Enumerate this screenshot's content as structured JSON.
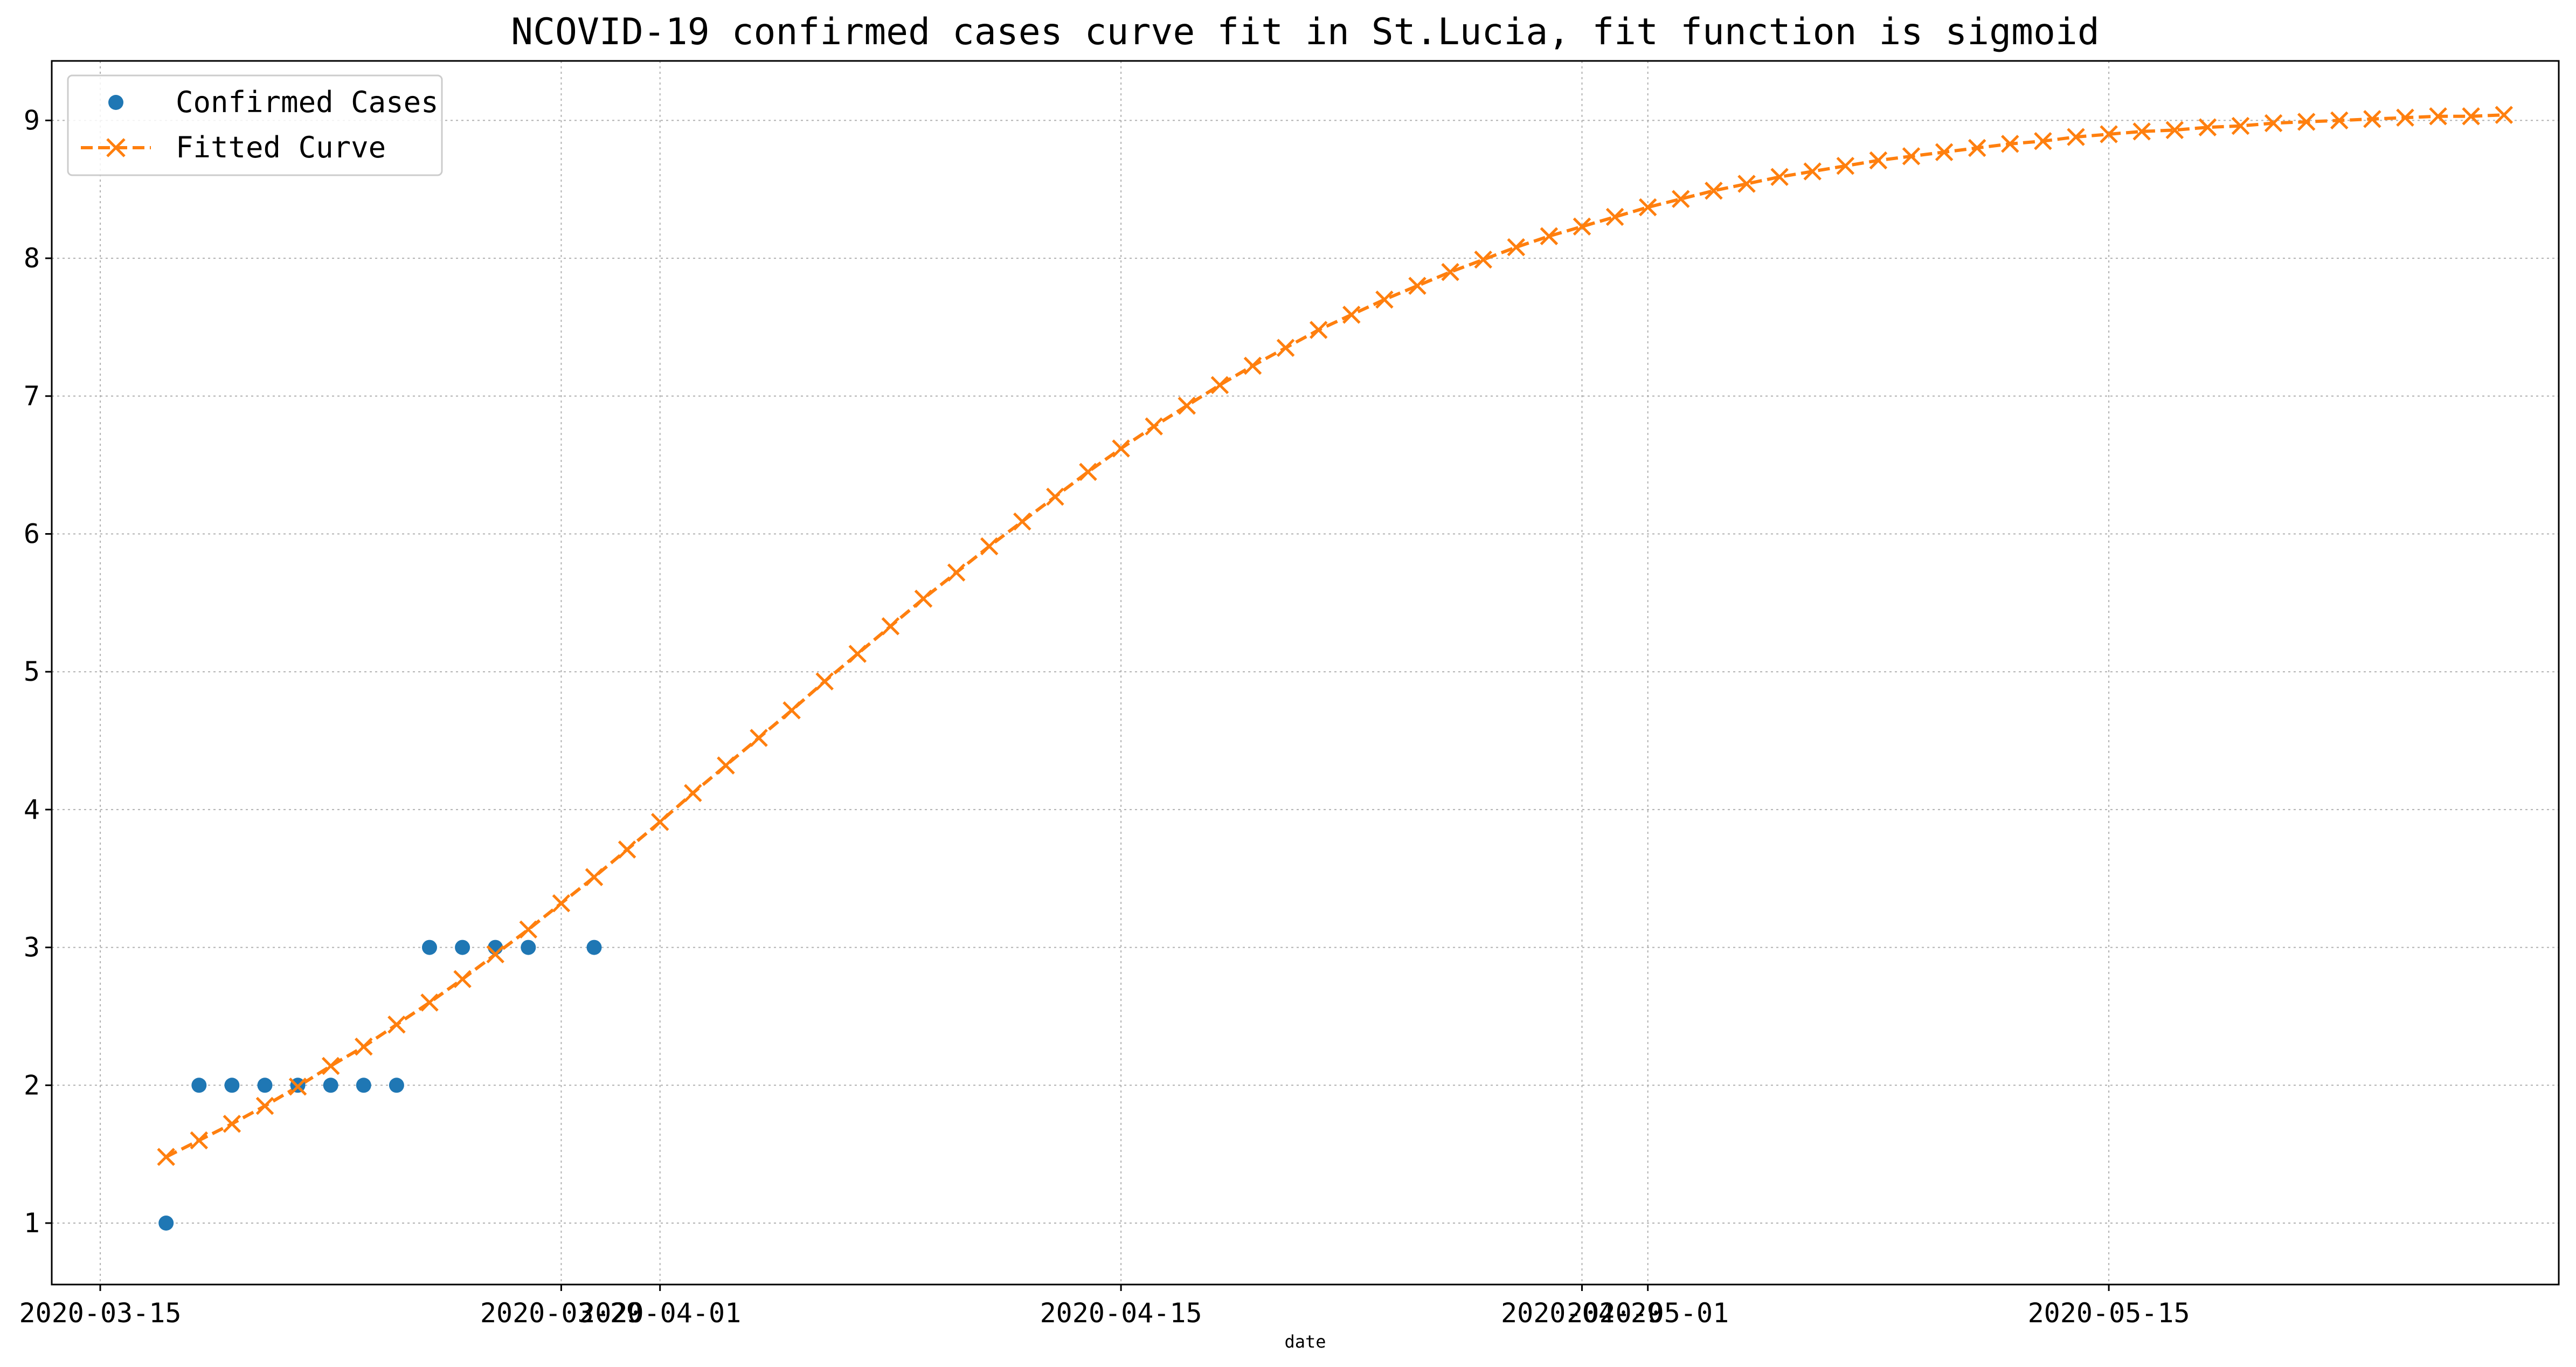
{
  "chart_data": {
    "type": "line",
    "title": "NCOVID-19 confirmed cases curve fit in St.Lucia, fit function is sigmoid",
    "xlabel": "date",
    "ylabel": "",
    "x_ticks": [
      "2020-03-15",
      "2020-03-29",
      "2020-04-01",
      "2020-04-15",
      "2020-04-29",
      "2020-05-01",
      "2020-05-15"
    ],
    "y_ticks": [
      1,
      2,
      3,
      4,
      5,
      6,
      7,
      8,
      9
    ],
    "ylim": [
      0.6,
      9.4
    ],
    "xlim": [
      "2020-03-15",
      "2020-05-29"
    ],
    "grid": true,
    "legend": "top-left",
    "colors": {
      "confirmed": "#1f77b4",
      "fitted": "#ff7f0e"
    },
    "series": [
      {
        "name": "Confirmed Cases",
        "style": "markers",
        "x": [
          "2020-03-17",
          "2020-03-18",
          "2020-03-19",
          "2020-03-20",
          "2020-03-21",
          "2020-03-22",
          "2020-03-23",
          "2020-03-24",
          "2020-03-25",
          "2020-03-26",
          "2020-03-27",
          "2020-03-28",
          "2020-03-30"
        ],
        "values": [
          1,
          2,
          2,
          2,
          2,
          2,
          2,
          2,
          3,
          3,
          3,
          3,
          3
        ]
      },
      {
        "name": "Fitted Curve",
        "style": "dashed-line-with-x-markers",
        "x": [
          "2020-03-17",
          "2020-03-18",
          "2020-03-19",
          "2020-03-20",
          "2020-03-21",
          "2020-03-22",
          "2020-03-23",
          "2020-03-24",
          "2020-03-25",
          "2020-03-26",
          "2020-03-27",
          "2020-03-28",
          "2020-03-29",
          "2020-03-30",
          "2020-03-31",
          "2020-04-01",
          "2020-04-02",
          "2020-04-03",
          "2020-04-04",
          "2020-04-05",
          "2020-04-06",
          "2020-04-07",
          "2020-04-08",
          "2020-04-09",
          "2020-04-10",
          "2020-04-11",
          "2020-04-12",
          "2020-04-13",
          "2020-04-14",
          "2020-04-15",
          "2020-04-16",
          "2020-04-17",
          "2020-04-18",
          "2020-04-19",
          "2020-04-20",
          "2020-04-21",
          "2020-04-22",
          "2020-04-23",
          "2020-04-24",
          "2020-04-25",
          "2020-04-26",
          "2020-04-27",
          "2020-04-28",
          "2020-04-29",
          "2020-04-30",
          "2020-05-01",
          "2020-05-02",
          "2020-05-03",
          "2020-05-04",
          "2020-05-05",
          "2020-05-06",
          "2020-05-07",
          "2020-05-08",
          "2020-05-09",
          "2020-05-10",
          "2020-05-11",
          "2020-05-12",
          "2020-05-13",
          "2020-05-14",
          "2020-05-15",
          "2020-05-16",
          "2020-05-17",
          "2020-05-18",
          "2020-05-19",
          "2020-05-20",
          "2020-05-21",
          "2020-05-22",
          "2020-05-23",
          "2020-05-24",
          "2020-05-25",
          "2020-05-26",
          "2020-05-27"
        ],
        "values": [
          1.48,
          1.6,
          1.72,
          1.85,
          1.99,
          2.14,
          2.28,
          2.44,
          2.6,
          2.77,
          2.95,
          3.13,
          3.32,
          3.51,
          3.71,
          3.91,
          4.12,
          4.32,
          4.52,
          4.72,
          4.93,
          5.13,
          5.33,
          5.53,
          5.72,
          5.91,
          6.09,
          6.27,
          6.45,
          6.62,
          6.78,
          6.93,
          7.08,
          7.22,
          7.35,
          7.48,
          7.59,
          7.7,
          7.8,
          7.9,
          7.99,
          8.08,
          8.16,
          8.23,
          8.3,
          8.37,
          8.43,
          8.49,
          8.54,
          8.59,
          8.63,
          8.67,
          8.71,
          8.74,
          8.77,
          8.8,
          8.83,
          8.85,
          8.88,
          8.9,
          8.92,
          8.93,
          8.95,
          8.96,
          8.98,
          8.99,
          9.0,
          9.01,
          9.02,
          9.03,
          9.03,
          9.04
        ]
      }
    ]
  }
}
